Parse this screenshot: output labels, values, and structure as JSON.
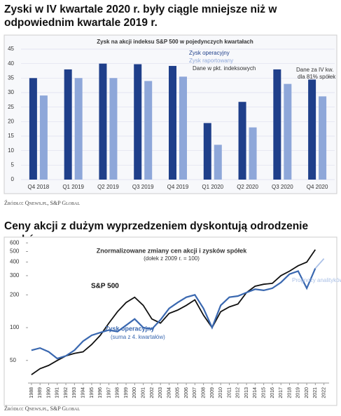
{
  "headings": [
    "Zyski w IV kwartale 2020 r. były ciągle mniejsze niż w odpowiednim kwartale 2019 r.",
    "Ceny akcji z dużym wyprzedzeniem dyskontują odrodzenie zysków"
  ],
  "sources": [
    "Źródło: Qnews.pl, S&P Global",
    "Źródło: Qnews.pl, S&P Global"
  ],
  "chart_data": [
    {
      "type": "bar",
      "title": "Zysk na akcji indeksu S&P 500 w pojedynczych kwartałach",
      "categories": [
        "Q4 2018",
        "Q1 2019",
        "Q2 2019",
        "Q3 2019",
        "Q4 2019",
        "Q1 2020",
        "Q2 2020",
        "Q3 2020",
        "Q4 2020"
      ],
      "series": [
        {
          "name": "Zysk operacyjny",
          "color": "#1f3f8a",
          "values": [
            35,
            38,
            40,
            39.8,
            39.2,
            19.5,
            26.8,
            38,
            34.5
          ]
        },
        {
          "name": "Zysk raportowany",
          "color": "#8ea7d9",
          "values": [
            29,
            35,
            35,
            34,
            35.5,
            12,
            18,
            33,
            28.7
          ]
        }
      ],
      "annotations": [
        "Dane w pkt. indeksowych",
        "Dane za IV kw.",
        "dla 81% spółek"
      ],
      "ylim": [
        0,
        45
      ],
      "yticks": [
        0,
        5,
        10,
        15,
        20,
        25,
        30,
        35,
        40,
        45
      ],
      "grid": true
    },
    {
      "type": "line",
      "title": "Znormalizowane zmiany cen akcji i zysków spółek",
      "subtitle": "(dołek z 2009 r. = 100)",
      "series": [
        {
          "name": "S&P 500",
          "color": "#111111",
          "x": [
            1988,
            1989,
            1990,
            1991,
            1992,
            1993,
            1994,
            1995,
            1996,
            1997,
            1998,
            1999,
            2000,
            2001,
            2002,
            2003,
            2004,
            2005,
            2006,
            2007,
            2008,
            2009,
            2010,
            2011,
            2012,
            2013,
            2014,
            2015,
            2016,
            2017,
            2018,
            2019,
            2020,
            2021
          ],
          "values": [
            37,
            42,
            45,
            50,
            55,
            58,
            60,
            70,
            85,
            110,
            140,
            170,
            190,
            160,
            120,
            110,
            135,
            145,
            160,
            180,
            130,
            100,
            140,
            155,
            165,
            210,
            240,
            250,
            255,
            300,
            330,
            370,
            400,
            520
          ]
        },
        {
          "name": "Zysk operacyjny",
          "color": "#3a68b0",
          "x": [
            1988,
            1989,
            1990,
            1991,
            1992,
            1993,
            1994,
            1995,
            1996,
            1997,
            1998,
            1999,
            2000,
            2001,
            2002,
            2003,
            2004,
            2005,
            2006,
            2007,
            2008,
            2009,
            2010,
            2011,
            2012,
            2013,
            2014,
            2015,
            2016,
            2017,
            2018,
            2019,
            2020,
            2021
          ],
          "values": [
            62,
            65,
            60,
            52,
            55,
            62,
            75,
            85,
            90,
            95,
            92,
            105,
            120,
            100,
            97,
            118,
            150,
            170,
            190,
            200,
            150,
            100,
            160,
            190,
            195,
            210,
            225,
            220,
            230,
            260,
            310,
            330,
            230,
            350
          ]
        },
        {
          "name": "Prognozy analityków",
          "color": "#aac0e6",
          "x": [
            2021,
            2022
          ],
          "values": [
            350,
            430
          ]
        }
      ],
      "annotations": [
        "(suma z 4. kwartałów)"
      ],
      "log_scale": true,
      "xlim": [
        1987.6,
        2022.6
      ],
      "ylim": [
        31,
        620
      ],
      "xticks": [
        1988,
        1989,
        1990,
        1991,
        1992,
        1993,
        1994,
        1995,
        1996,
        1997,
        1998,
        1999,
        2000,
        2001,
        2002,
        2003,
        2004,
        2005,
        2006,
        2007,
        2008,
        2009,
        2010,
        2011,
        2012,
        2013,
        2014,
        2015,
        2016,
        2017,
        2018,
        2019,
        2020,
        2021,
        2022
      ],
      "yticks": [
        50,
        100,
        200,
        300,
        400,
        500,
        600
      ],
      "grid": false
    }
  ]
}
